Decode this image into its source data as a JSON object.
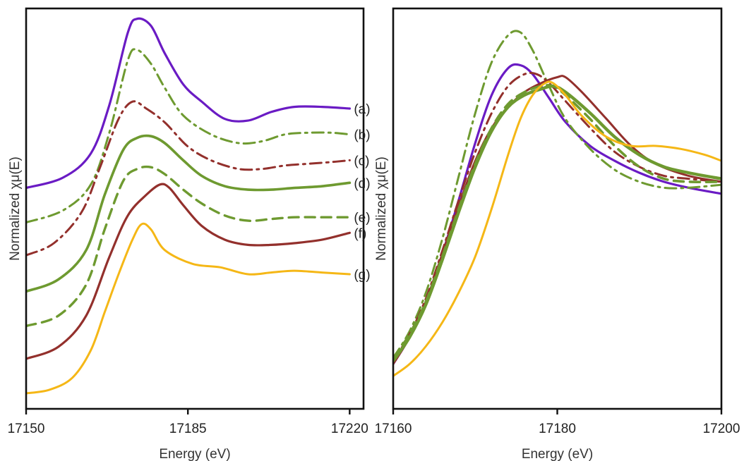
{
  "colors": {
    "purple": "#6a1bc4",
    "green": "#6e9a30",
    "darkred": "#93302c",
    "gold": "#f5b716"
  },
  "chart_data": [
    {
      "type": "line",
      "panel": "left",
      "xlabel": "Energy (eV)",
      "ylabel": "Normalized χμ(E)",
      "xlim": [
        17150,
        17223
      ],
      "xticks": [
        "17150",
        "17185",
        "17220"
      ],
      "xtick_values": [
        17150,
        17185,
        17220
      ],
      "legend": "curve labels at right end",
      "grid": false,
      "series": [
        {
          "name": "(a)",
          "color": "#6a1bc4",
          "style": "solid",
          "width": 3.2,
          "x": [
            17150,
            17158,
            17164,
            17168,
            17172,
            17174,
            17177,
            17180,
            17184,
            17188,
            17193,
            17198,
            17203,
            17208,
            17214,
            17220
          ],
          "y": [
            8.4,
            8.7,
            9.4,
            10.8,
            12.9,
            13.3,
            13.1,
            12.3,
            11.4,
            10.9,
            10.4,
            10.35,
            10.6,
            10.75,
            10.75,
            10.7
          ]
        },
        {
          "name": "(b)",
          "color": "#6e9a30",
          "style": "dashdot",
          "width": 3.0,
          "x": [
            17150,
            17158,
            17164,
            17168,
            17172,
            17174,
            17177,
            17180,
            17184,
            17190,
            17196,
            17201,
            17206,
            17211,
            17216,
            17220
          ],
          "y": [
            7.4,
            7.75,
            8.5,
            10.0,
            12.1,
            12.4,
            12.0,
            11.3,
            10.5,
            9.95,
            9.7,
            9.75,
            9.95,
            10.0,
            10.0,
            9.95
          ]
        },
        {
          "name": "(c)",
          "color": "#93302c",
          "style": "dashdot",
          "width": 3.0,
          "x": [
            17150,
            17156,
            17162,
            17166,
            17170,
            17173,
            17176,
            17180,
            17185,
            17190,
            17196,
            17201,
            17206,
            17211,
            17216,
            17220
          ],
          "y": [
            6.45,
            6.8,
            7.7,
            9.0,
            10.4,
            10.9,
            10.7,
            10.3,
            9.6,
            9.2,
            8.95,
            8.95,
            9.05,
            9.1,
            9.15,
            9.2
          ]
        },
        {
          "name": "(d)",
          "color": "#6e9a30",
          "style": "solid",
          "width": 3.6,
          "x": [
            17150,
            17157,
            17163,
            17167,
            17171,
            17174,
            17177,
            17180,
            17184,
            17188,
            17193,
            17198,
            17203,
            17208,
            17214,
            17220
          ],
          "y": [
            5.4,
            5.75,
            6.6,
            8.2,
            9.5,
            9.85,
            9.9,
            9.7,
            9.2,
            8.75,
            8.45,
            8.35,
            8.35,
            8.4,
            8.45,
            8.55
          ]
        },
        {
          "name": "(e)",
          "color": "#6e9a30",
          "style": "dashed",
          "width": 3.4,
          "x": [
            17150,
            17157,
            17163,
            17167,
            17171,
            17174,
            17177,
            17180,
            17184,
            17188,
            17193,
            17198,
            17203,
            17208,
            17214,
            17220
          ],
          "y": [
            4.4,
            4.7,
            5.6,
            7.2,
            8.6,
            8.95,
            9.0,
            8.8,
            8.35,
            7.95,
            7.6,
            7.45,
            7.5,
            7.55,
            7.55,
            7.55
          ]
        },
        {
          "name": "(f)",
          "color": "#93302c",
          "style": "solid",
          "width": 3.2,
          "x": [
            17150,
            17157,
            17163,
            17168,
            17172,
            17176,
            17179,
            17181,
            17184,
            17188,
            17193,
            17198,
            17203,
            17208,
            17214,
            17220
          ],
          "y": [
            3.45,
            3.8,
            4.7,
            6.4,
            7.6,
            8.2,
            8.5,
            8.4,
            7.9,
            7.3,
            6.9,
            6.75,
            6.75,
            6.8,
            6.9,
            7.1
          ]
        },
        {
          "name": "(g)",
          "color": "#f5b716",
          "style": "solid",
          "width": 3.0,
          "x": [
            17150,
            17155,
            17160,
            17164,
            17167,
            17170,
            17173,
            17175,
            17177,
            17180,
            17186,
            17192,
            17198,
            17203,
            17208,
            17214,
            17220
          ],
          "y": [
            2.45,
            2.55,
            2.9,
            3.7,
            4.8,
            5.9,
            6.9,
            7.35,
            7.2,
            6.6,
            6.2,
            6.1,
            5.9,
            5.95,
            6.0,
            5.95,
            5.9
          ]
        }
      ]
    },
    {
      "type": "line",
      "panel": "right",
      "xlabel": "Energy (eV)",
      "ylabel": "Normalized χμ(E)",
      "xlim": [
        17160,
        17200
      ],
      "xticks": [
        "17160",
        "17180",
        "17200"
      ],
      "xtick_values": [
        17160,
        17180,
        17200
      ],
      "grid": false,
      "series": [
        {
          "name": "",
          "color": "#6a1bc4",
          "style": "solid",
          "width": 3.2,
          "x": [
            17160,
            17162,
            17164,
            17166,
            17168,
            17170,
            17172,
            17174,
            17175.5,
            17177,
            17179,
            17181,
            17184,
            17187,
            17190,
            17193,
            17196,
            17200
          ],
          "y": [
            0.15,
            0.24,
            0.36,
            0.52,
            0.7,
            0.89,
            1.05,
            1.14,
            1.15,
            1.12,
            1.04,
            0.96,
            0.88,
            0.83,
            0.79,
            0.76,
            0.74,
            0.72
          ]
        },
        {
          "name": "",
          "color": "#6e9a30",
          "style": "dashdot",
          "width": 3.0,
          "x": [
            17160,
            17162,
            17164,
            17166,
            17168,
            17170,
            17172,
            17174,
            17175.5,
            17177,
            17179,
            17181,
            17184,
            17187,
            17190,
            17193,
            17196,
            17200
          ],
          "y": [
            0.17,
            0.26,
            0.39,
            0.57,
            0.78,
            0.99,
            1.16,
            1.25,
            1.26,
            1.2,
            1.08,
            0.97,
            0.87,
            0.8,
            0.76,
            0.74,
            0.74,
            0.75
          ]
        },
        {
          "name": "",
          "color": "#93302c",
          "style": "dashdot",
          "width": 3.0,
          "x": [
            17160,
            17162,
            17164,
            17166,
            17168,
            17170,
            17172,
            17174,
            17176,
            17177.5,
            17179,
            17181,
            17184,
            17187,
            17190,
            17193,
            17196,
            17200
          ],
          "y": [
            0.16,
            0.25,
            0.37,
            0.53,
            0.7,
            0.86,
            0.99,
            1.08,
            1.12,
            1.12,
            1.09,
            1.03,
            0.94,
            0.86,
            0.81,
            0.78,
            0.77,
            0.76
          ]
        },
        {
          "name": "",
          "color": "#93302c",
          "style": "solid",
          "width": 3.0,
          "x": [
            17160,
            17162,
            17164,
            17166,
            17168,
            17170,
            17172,
            17174,
            17176,
            17178,
            17180,
            17181,
            17183,
            17186,
            17189,
            17192,
            17196,
            17200
          ],
          "y": [
            0.15,
            0.24,
            0.36,
            0.52,
            0.68,
            0.83,
            0.94,
            1.01,
            1.06,
            1.09,
            1.11,
            1.11,
            1.06,
            0.97,
            0.88,
            0.82,
            0.78,
            0.76
          ]
        },
        {
          "name": "",
          "color": "#6e9a30",
          "style": "solid",
          "width": 4.4,
          "x": [
            17160,
            17162,
            17164,
            17166,
            17168,
            17170,
            17172,
            17174,
            17176,
            17178,
            17179.5,
            17181,
            17184,
            17187,
            17190,
            17193,
            17196,
            17200
          ],
          "y": [
            0.16,
            0.24,
            0.35,
            0.5,
            0.66,
            0.81,
            0.93,
            1.01,
            1.05,
            1.07,
            1.08,
            1.06,
            0.99,
            0.91,
            0.85,
            0.81,
            0.79,
            0.77
          ]
        },
        {
          "name": "",
          "color": "#6e9a30",
          "style": "dashed",
          "width": 3.6,
          "x": [
            17160,
            17162,
            17164,
            17166,
            17168,
            17170,
            17172,
            17174,
            17176,
            17178,
            17179.5,
            17181,
            17184,
            17187,
            17190,
            17193,
            17196,
            17200
          ],
          "y": [
            0.17,
            0.25,
            0.36,
            0.51,
            0.67,
            0.82,
            0.94,
            1.02,
            1.06,
            1.08,
            1.08,
            1.05,
            0.97,
            0.88,
            0.81,
            0.77,
            0.76,
            0.76
          ]
        },
        {
          "name": "",
          "color": "#f5b716",
          "style": "solid",
          "width": 3.0,
          "x": [
            17160,
            17162,
            17164,
            17166,
            17168,
            17170,
            17172,
            17174,
            17175.5,
            17177,
            17178.5,
            17179.5,
            17181,
            17183,
            17186,
            17189,
            17192,
            17195,
            17198,
            17200
          ],
          "y": [
            0.11,
            0.15,
            0.21,
            0.29,
            0.39,
            0.51,
            0.67,
            0.85,
            0.97,
            1.05,
            1.09,
            1.09,
            1.05,
            0.98,
            0.91,
            0.88,
            0.88,
            0.87,
            0.85,
            0.83
          ]
        }
      ]
    }
  ]
}
